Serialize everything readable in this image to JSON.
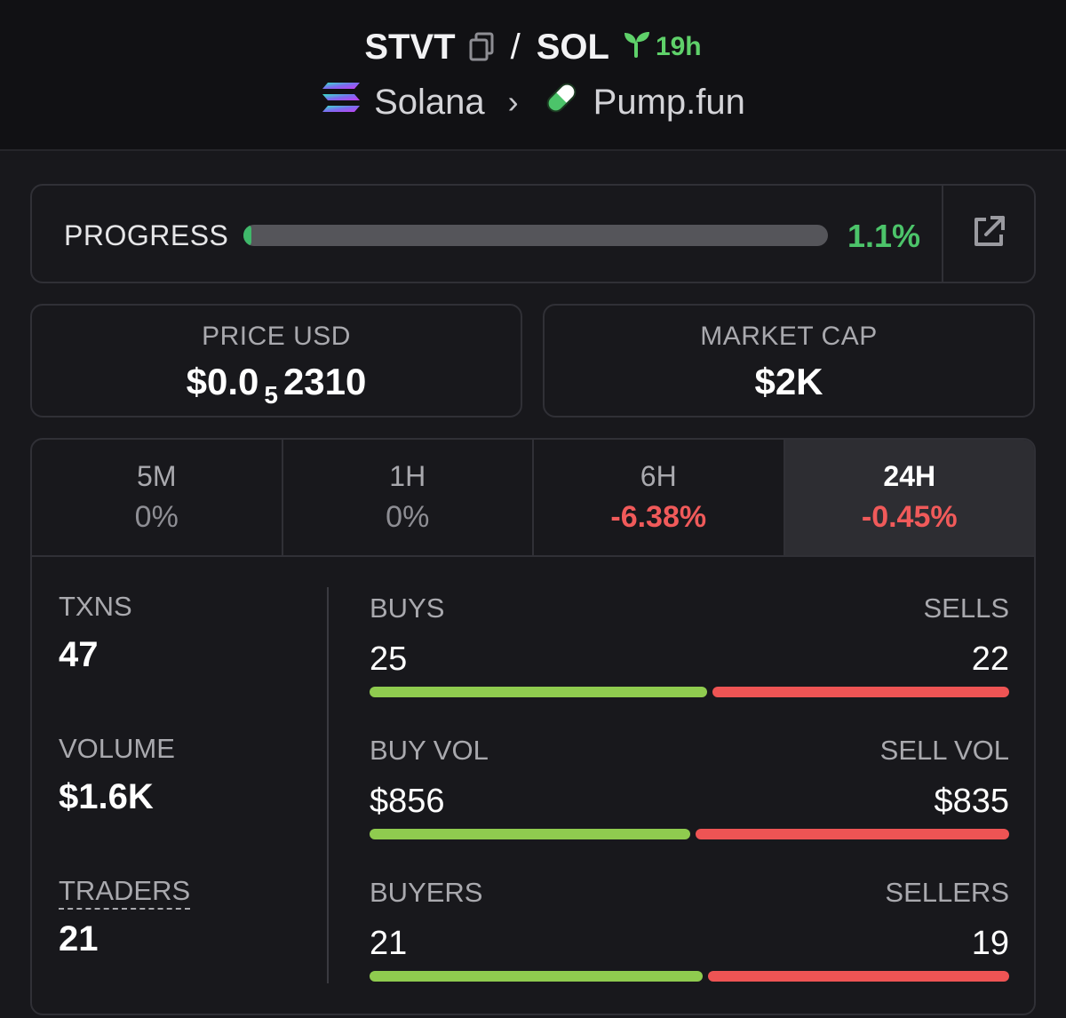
{
  "header": {
    "base": "STVT",
    "separator": "/",
    "quote": "SOL",
    "age": "19h",
    "chain": "Solana",
    "dex": "Pump.fun"
  },
  "progress": {
    "label": "PROGRESS",
    "value_text": "1.1%",
    "fraction": 0.011
  },
  "price": {
    "label": "PRICE USD",
    "prefix": "$0.0",
    "zeros": "5",
    "digits": "2310"
  },
  "market_cap": {
    "label": "MARKET CAP",
    "value": "$2K"
  },
  "tabs": [
    {
      "label": "5M",
      "change": "0%"
    },
    {
      "label": "1H",
      "change": "0%"
    },
    {
      "label": "6H",
      "change": "-6.38%"
    },
    {
      "label": "24H",
      "change": "-0.45%"
    }
  ],
  "stats": {
    "txns": {
      "label": "TXNS",
      "value": "47"
    },
    "volume": {
      "label": "VOLUME",
      "value": "$1.6K"
    },
    "traders": {
      "label": "TRADERS",
      "value": "21"
    }
  },
  "bars": [
    {
      "left_label": "BUYS",
      "right_label": "SELLS",
      "left_value": "25",
      "right_value": "22",
      "left_num": 25,
      "right_num": 22
    },
    {
      "left_label": "BUY VOL",
      "right_label": "SELL VOL",
      "left_value": "$856",
      "right_value": "$835",
      "left_num": 856,
      "right_num": 835
    },
    {
      "left_label": "BUYERS",
      "right_label": "SELLERS",
      "left_value": "21",
      "right_value": "19",
      "left_num": 21,
      "right_num": 19
    }
  ],
  "colors": {
    "positive": "#4cc46a",
    "negative": "#f05a5a",
    "buy_bar": "#8fcb4f",
    "sell_bar": "#ee5454"
  }
}
